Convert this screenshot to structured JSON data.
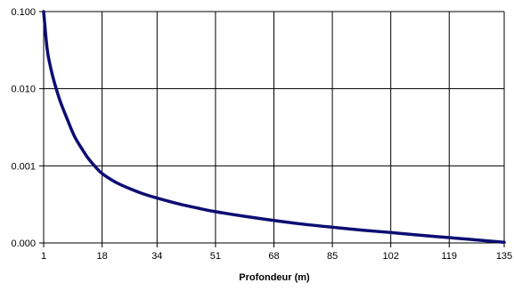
{
  "chart_data": {
    "type": "line",
    "title": "",
    "xlabel": "Profondeur (m)",
    "ylabel": "",
    "x_ticks": [
      "1",
      "18",
      "34",
      "51",
      "68",
      "85",
      "102",
      "119",
      "135"
    ],
    "y_ticks": [
      "0.100",
      "0.010",
      "0.001",
      "0.000"
    ],
    "grid": true,
    "legend": "none",
    "line_color": "#0d0d73",
    "series": [
      {
        "x": [
          1,
          2,
          3,
          4,
          5,
          6,
          8,
          10,
          12,
          14,
          16,
          18,
          22,
          26,
          30,
          34,
          40,
          46,
          51,
          60,
          68,
          76,
          85,
          94,
          102,
          110,
          119,
          127,
          135
        ],
        "y_axis_position": [
          0.0,
          0.16,
          0.24,
          0.3,
          0.35,
          0.395,
          0.47,
          0.54,
          0.59,
          0.635,
          0.67,
          0.7,
          0.738,
          0.765,
          0.788,
          0.806,
          0.83,
          0.85,
          0.865,
          0.886,
          0.903,
          0.918,
          0.932,
          0.945,
          0.955,
          0.966,
          0.977,
          0.987,
          0.997
        ]
      }
    ]
  }
}
